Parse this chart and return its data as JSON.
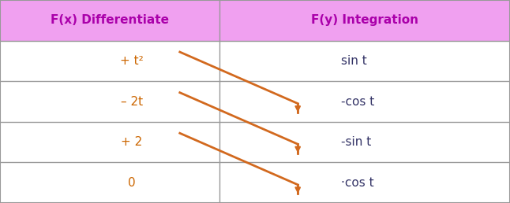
{
  "header_bg": "#f0a0f0",
  "header_text_color": "#aa00aa",
  "header_left": "F(x) Differentiate",
  "header_right": "F(y) Integration",
  "left_col": [
    "+ t²",
    "– 2t",
    "+ 2",
    "0"
  ],
  "right_col": [
    "sin t",
    "-cos t",
    "-sin t",
    "·cos t"
  ],
  "arrow_color": "#d2691e",
  "table_border_color": "#999999",
  "text_color_left": "#cc6600",
  "text_color_right": "#333366",
  "fig_width": 6.46,
  "fig_height": 2.58,
  "dpi": 100,
  "col_split": 0.43,
  "n_rows": 5,
  "header_fontsize": 11,
  "cell_fontsize": 11
}
